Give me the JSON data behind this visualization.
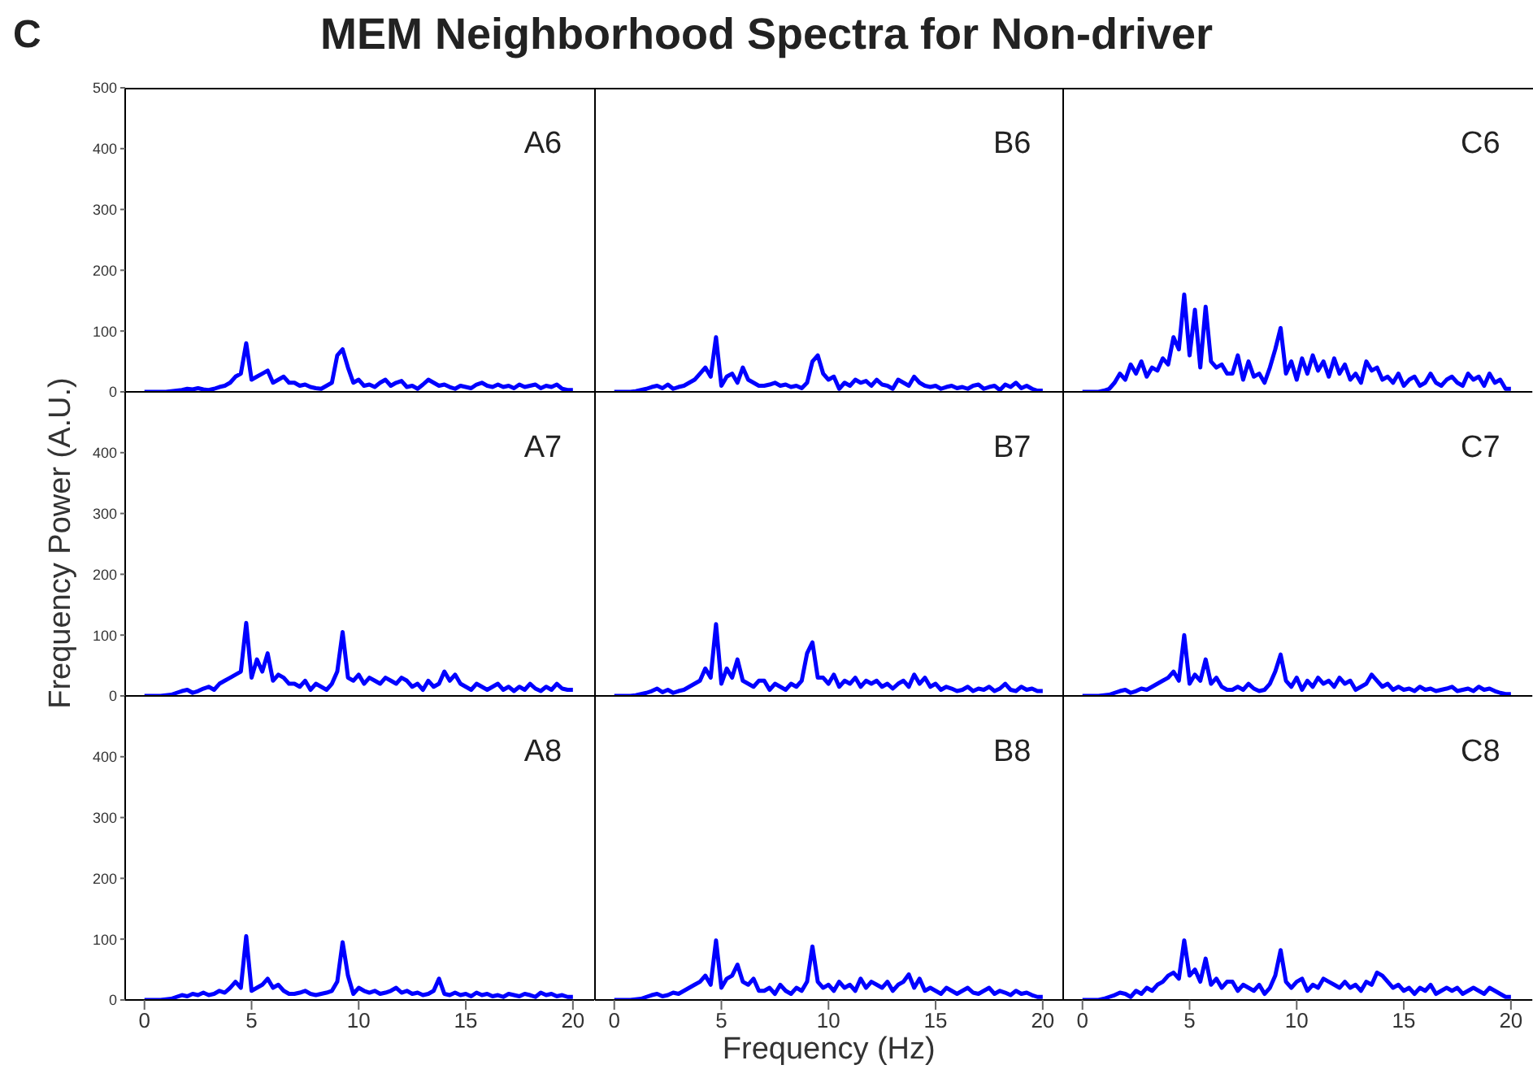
{
  "chart_data": [
    {
      "type": "line",
      "title": "A6",
      "annotations": [
        "C"
      ],
      "tick_labels": "y",
      "xlim": [
        -0.9,
        21
      ],
      "xticks": [
        0,
        5,
        10,
        15,
        20
      ],
      "ylim": [
        0,
        500
      ],
      "yticks": [
        0,
        100,
        200,
        300,
        400,
        500
      ],
      "grid": false,
      "legend": false,
      "marker": "none",
      "line_style": "solid",
      "x": [
        0,
        0.25,
        0.5,
        0.75,
        1,
        1.25,
        1.5,
        1.75,
        2,
        2.25,
        2.5,
        2.75,
        3,
        3.25,
        3.5,
        3.75,
        4,
        4.25,
        4.5,
        4.75,
        5,
        5.25,
        5.5,
        5.75,
        6,
        6.25,
        6.5,
        6.75,
        7,
        7.25,
        7.5,
        7.75,
        8,
        8.25,
        8.5,
        8.75,
        9,
        9.25,
        9.5,
        9.75,
        10,
        10.25,
        10.5,
        10.75,
        11,
        11.25,
        11.5,
        11.75,
        12,
        12.25,
        12.5,
        12.75,
        13,
        13.25,
        13.5,
        13.75,
        14,
        14.25,
        14.5,
        14.75,
        15,
        15.25,
        15.5,
        15.75,
        16,
        16.25,
        16.5,
        16.75,
        17,
        17.25,
        17.5,
        17.75,
        18,
        18.25,
        18.5,
        18.75,
        19,
        19.25,
        19.5,
        19.75,
        20
      ],
      "series": [
        {
          "color": "#0000ff",
          "values": [
            0,
            0,
            0,
            0,
            0,
            1,
            2,
            3,
            5,
            4,
            6,
            4,
            3,
            5,
            8,
            10,
            15,
            25,
            30,
            80,
            20,
            25,
            30,
            35,
            15,
            20,
            25,
            15,
            15,
            10,
            12,
            8,
            6,
            5,
            10,
            15,
            60,
            70,
            40,
            15,
            20,
            10,
            12,
            8,
            15,
            20,
            10,
            15,
            18,
            8,
            10,
            5,
            12,
            20,
            15,
            10,
            12,
            8,
            5,
            10,
            8,
            6,
            12,
            15,
            10,
            8,
            12,
            8,
            10,
            6,
            12,
            8,
            10,
            12,
            6,
            10,
            8,
            12,
            5,
            3,
            3
          ]
        }
      ]
    },
    {
      "type": "line",
      "title": "B6",
      "annotations": [
        "MEM Neighborhood Spectra for Non-driver"
      ],
      "tick_labels": false,
      "xlim": [
        -0.9,
        21
      ],
      "xticks": [
        0,
        5,
        10,
        15,
        20
      ],
      "ylim": [
        0,
        500
      ],
      "yticks": [
        0,
        100,
        200,
        300,
        400,
        500
      ],
      "grid": false,
      "legend": false,
      "marker": "none",
      "line_style": "solid",
      "x": [
        0,
        0.25,
        0.5,
        0.75,
        1,
        1.25,
        1.5,
        1.75,
        2,
        2.25,
        2.5,
        2.75,
        3,
        3.25,
        3.5,
        3.75,
        4,
        4.25,
        4.5,
        4.75,
        5,
        5.25,
        5.5,
        5.75,
        6,
        6.25,
        6.5,
        6.75,
        7,
        7.25,
        7.5,
        7.75,
        8,
        8.25,
        8.5,
        8.75,
        9,
        9.25,
        9.5,
        9.75,
        10,
        10.25,
        10.5,
        10.75,
        11,
        11.25,
        11.5,
        11.75,
        12,
        12.25,
        12.5,
        12.75,
        13,
        13.25,
        13.5,
        13.75,
        14,
        14.25,
        14.5,
        14.75,
        15,
        15.25,
        15.5,
        15.75,
        16,
        16.25,
        16.5,
        16.75,
        17,
        17.25,
        17.5,
        17.75,
        18,
        18.25,
        18.5,
        18.75,
        19,
        19.25,
        19.5,
        19.75,
        20
      ],
      "series": [
        {
          "color": "#0000ff",
          "values": [
            0,
            0,
            0,
            0,
            1,
            3,
            5,
            8,
            10,
            6,
            12,
            5,
            8,
            10,
            15,
            20,
            30,
            40,
            25,
            90,
            10,
            25,
            30,
            15,
            40,
            20,
            15,
            10,
            10,
            12,
            15,
            10,
            12,
            8,
            10,
            6,
            15,
            50,
            60,
            30,
            20,
            25,
            5,
            15,
            10,
            20,
            15,
            18,
            10,
            20,
            12,
            10,
            5,
            20,
            15,
            10,
            25,
            15,
            10,
            8,
            10,
            5,
            8,
            10,
            6,
            8,
            5,
            10,
            12,
            5,
            8,
            10,
            3,
            12,
            8,
            15,
            6,
            10,
            5,
            2,
            2
          ]
        }
      ]
    },
    {
      "type": "line",
      "title": "C6",
      "tick_labels": false,
      "xlim": [
        -0.9,
        21
      ],
      "xticks": [
        0,
        5,
        10,
        15,
        20
      ],
      "ylim": [
        0,
        500
      ],
      "yticks": [
        0,
        100,
        200,
        300,
        400,
        500
      ],
      "grid": false,
      "legend": false,
      "marker": "none",
      "line_style": "solid",
      "x": [
        0,
        0.25,
        0.5,
        0.75,
        1,
        1.25,
        1.5,
        1.75,
        2,
        2.25,
        2.5,
        2.75,
        3,
        3.25,
        3.5,
        3.75,
        4,
        4.25,
        4.5,
        4.75,
        5,
        5.25,
        5.5,
        5.75,
        6,
        6.25,
        6.5,
        6.75,
        7,
        7.25,
        7.5,
        7.75,
        8,
        8.25,
        8.5,
        8.75,
        9,
        9.25,
        9.5,
        9.75,
        10,
        10.25,
        10.5,
        10.75,
        11,
        11.25,
        11.5,
        11.75,
        12,
        12.25,
        12.5,
        12.75,
        13,
        13.25,
        13.5,
        13.75,
        14,
        14.25,
        14.5,
        14.75,
        15,
        15.25,
        15.5,
        15.75,
        16,
        16.25,
        16.5,
        16.75,
        17,
        17.25,
        17.5,
        17.75,
        18,
        18.25,
        18.5,
        18.75,
        19,
        19.25,
        19.5,
        19.75,
        20
      ],
      "series": [
        {
          "color": "#0000ff",
          "values": [
            0,
            0,
            0,
            0,
            2,
            5,
            15,
            30,
            20,
            45,
            30,
            50,
            25,
            40,
            35,
            55,
            45,
            90,
            70,
            160,
            60,
            135,
            40,
            140,
            50,
            40,
            45,
            30,
            30,
            60,
            20,
            50,
            25,
            30,
            15,
            40,
            70,
            105,
            30,
            50,
            20,
            55,
            30,
            60,
            35,
            50,
            25,
            55,
            30,
            45,
            20,
            30,
            15,
            50,
            35,
            40,
            20,
            25,
            15,
            30,
            10,
            20,
            25,
            10,
            15,
            30,
            15,
            10,
            20,
            25,
            15,
            10,
            30,
            20,
            25,
            10,
            30,
            15,
            20,
            5,
            5
          ]
        }
      ]
    },
    {
      "type": "line",
      "title": "A7",
      "ylabel": "Frequency Power (A.U.)",
      "tick_labels": "y",
      "xlim": [
        -0.9,
        21
      ],
      "xticks": [
        0,
        5,
        10,
        15,
        20
      ],
      "ylim": [
        0,
        500
      ],
      "yticks": [
        0,
        100,
        200,
        300,
        400
      ],
      "grid": false,
      "legend": false,
      "marker": "none",
      "line_style": "solid",
      "x": [
        0,
        0.25,
        0.5,
        0.75,
        1,
        1.25,
        1.5,
        1.75,
        2,
        2.25,
        2.5,
        2.75,
        3,
        3.25,
        3.5,
        3.75,
        4,
        4.25,
        4.5,
        4.75,
        5,
        5.25,
        5.5,
        5.75,
        6,
        6.25,
        6.5,
        6.75,
        7,
        7.25,
        7.5,
        7.75,
        8,
        8.25,
        8.5,
        8.75,
        9,
        9.25,
        9.5,
        9.75,
        10,
        10.25,
        10.5,
        10.75,
        11,
        11.25,
        11.5,
        11.75,
        12,
        12.25,
        12.5,
        12.75,
        13,
        13.25,
        13.5,
        13.75,
        14,
        14.25,
        14.5,
        14.75,
        15,
        15.25,
        15.5,
        15.75,
        16,
        16.25,
        16.5,
        16.75,
        17,
        17.25,
        17.5,
        17.75,
        18,
        18.25,
        18.5,
        18.75,
        19,
        19.25,
        19.5,
        19.75,
        20
      ],
      "series": [
        {
          "color": "#0000ff",
          "values": [
            0,
            0,
            0,
            0,
            1,
            2,
            5,
            8,
            10,
            5,
            8,
            12,
            15,
            10,
            20,
            25,
            30,
            35,
            40,
            120,
            30,
            60,
            40,
            70,
            25,
            35,
            30,
            20,
            20,
            15,
            25,
            10,
            20,
            15,
            10,
            20,
            40,
            105,
            30,
            25,
            35,
            20,
            30,
            25,
            20,
            30,
            25,
            20,
            30,
            25,
            15,
            20,
            10,
            25,
            15,
            20,
            40,
            25,
            35,
            20,
            15,
            10,
            20,
            15,
            10,
            15,
            20,
            10,
            15,
            8,
            15,
            10,
            20,
            12,
            8,
            15,
            10,
            20,
            12,
            10,
            10
          ]
        }
      ]
    },
    {
      "type": "line",
      "title": "B7",
      "tick_labels": false,
      "xlim": [
        -0.9,
        21
      ],
      "xticks": [
        0,
        5,
        10,
        15,
        20
      ],
      "ylim": [
        0,
        500
      ],
      "yticks": [
        0,
        100,
        200,
        300,
        400
      ],
      "grid": false,
      "legend": false,
      "marker": "none",
      "line_style": "solid",
      "x": [
        0,
        0.25,
        0.5,
        0.75,
        1,
        1.25,
        1.5,
        1.75,
        2,
        2.25,
        2.5,
        2.75,
        3,
        3.25,
        3.5,
        3.75,
        4,
        4.25,
        4.5,
        4.75,
        5,
        5.25,
        5.5,
        5.75,
        6,
        6.25,
        6.5,
        6.75,
        7,
        7.25,
        7.5,
        7.75,
        8,
        8.25,
        8.5,
        8.75,
        9,
        9.25,
        9.5,
        9.75,
        10,
        10.25,
        10.5,
        10.75,
        11,
        11.25,
        11.5,
        11.75,
        12,
        12.25,
        12.5,
        12.75,
        13,
        13.25,
        13.5,
        13.75,
        14,
        14.25,
        14.5,
        14.75,
        15,
        15.25,
        15.5,
        15.75,
        16,
        16.25,
        16.5,
        16.75,
        17,
        17.25,
        17.5,
        17.75,
        18,
        18.25,
        18.5,
        18.75,
        19,
        19.25,
        19.5,
        19.75,
        20
      ],
      "series": [
        {
          "color": "#0000ff",
          "values": [
            0,
            0,
            0,
            0,
            1,
            3,
            5,
            8,
            12,
            6,
            10,
            5,
            8,
            10,
            15,
            20,
            25,
            45,
            30,
            118,
            20,
            45,
            30,
            60,
            25,
            20,
            15,
            25,
            25,
            10,
            20,
            15,
            10,
            20,
            15,
            25,
            70,
            88,
            30,
            30,
            20,
            35,
            15,
            25,
            20,
            30,
            15,
            25,
            20,
            25,
            15,
            20,
            12,
            20,
            25,
            15,
            35,
            20,
            30,
            15,
            20,
            10,
            15,
            12,
            8,
            10,
            15,
            8,
            12,
            10,
            15,
            8,
            12,
            20,
            10,
            8,
            15,
            10,
            12,
            8,
            8
          ]
        }
      ]
    },
    {
      "type": "line",
      "title": "C7",
      "tick_labels": false,
      "xlim": [
        -0.9,
        21
      ],
      "xticks": [
        0,
        5,
        10,
        15,
        20
      ],
      "ylim": [
        0,
        500
      ],
      "yticks": [
        0,
        100,
        200,
        300,
        400
      ],
      "grid": false,
      "legend": false,
      "marker": "none",
      "line_style": "solid",
      "x": [
        0,
        0.25,
        0.5,
        0.75,
        1,
        1.25,
        1.5,
        1.75,
        2,
        2.25,
        2.5,
        2.75,
        3,
        3.25,
        3.5,
        3.75,
        4,
        4.25,
        4.5,
        4.75,
        5,
        5.25,
        5.5,
        5.75,
        6,
        6.25,
        6.5,
        6.75,
        7,
        7.25,
        7.5,
        7.75,
        8,
        8.25,
        8.5,
        8.75,
        9,
        9.25,
        9.5,
        9.75,
        10,
        10.25,
        10.5,
        10.75,
        11,
        11.25,
        11.5,
        11.75,
        12,
        12.25,
        12.5,
        12.75,
        13,
        13.25,
        13.5,
        13.75,
        14,
        14.25,
        14.5,
        14.75,
        15,
        15.25,
        15.5,
        15.75,
        16,
        16.25,
        16.5,
        16.75,
        17,
        17.25,
        17.5,
        17.75,
        18,
        18.25,
        18.5,
        18.75,
        19,
        19.25,
        19.5,
        19.75,
        20
      ],
      "series": [
        {
          "color": "#0000ff",
          "values": [
            0,
            0,
            0,
            0,
            1,
            2,
            5,
            8,
            10,
            5,
            8,
            12,
            10,
            15,
            20,
            25,
            30,
            40,
            25,
            100,
            20,
            35,
            25,
            60,
            20,
            30,
            15,
            10,
            10,
            15,
            10,
            20,
            12,
            8,
            10,
            20,
            40,
            68,
            25,
            15,
            30,
            10,
            25,
            15,
            30,
            20,
            25,
            15,
            30,
            20,
            25,
            10,
            15,
            20,
            35,
            25,
            15,
            20,
            10,
            15,
            10,
            12,
            8,
            15,
            10,
            12,
            8,
            10,
            12,
            15,
            8,
            10,
            12,
            8,
            15,
            10,
            12,
            8,
            5,
            3,
            3
          ]
        }
      ]
    },
    {
      "type": "line",
      "title": "A8",
      "xlim": [
        -0.9,
        21
      ],
      "xticks": [
        0,
        5,
        10,
        15,
        20
      ],
      "ylim": [
        0,
        500
      ],
      "yticks": [
        0,
        100,
        200,
        300,
        400
      ],
      "grid": false,
      "legend": false,
      "marker": "none",
      "line_style": "solid",
      "x": [
        0,
        0.25,
        0.5,
        0.75,
        1,
        1.25,
        1.5,
        1.75,
        2,
        2.25,
        2.5,
        2.75,
        3,
        3.25,
        3.5,
        3.75,
        4,
        4.25,
        4.5,
        4.75,
        5,
        5.25,
        5.5,
        5.75,
        6,
        6.25,
        6.5,
        6.75,
        7,
        7.25,
        7.5,
        7.75,
        8,
        8.25,
        8.5,
        8.75,
        9,
        9.25,
        9.5,
        9.75,
        10,
        10.25,
        10.5,
        10.75,
        11,
        11.25,
        11.5,
        11.75,
        12,
        12.25,
        12.5,
        12.75,
        13,
        13.25,
        13.5,
        13.75,
        14,
        14.25,
        14.5,
        14.75,
        15,
        15.25,
        15.5,
        15.75,
        16,
        16.25,
        16.5,
        16.75,
        17,
        17.25,
        17.5,
        17.75,
        18,
        18.25,
        18.5,
        18.75,
        19,
        19.25,
        19.5,
        19.75,
        20
      ],
      "series": [
        {
          "color": "#0000ff",
          "values": [
            0,
            0,
            0,
            0,
            1,
            2,
            5,
            8,
            6,
            10,
            8,
            12,
            8,
            10,
            15,
            12,
            20,
            30,
            20,
            105,
            15,
            20,
            25,
            35,
            20,
            25,
            15,
            10,
            10,
            12,
            15,
            10,
            8,
            10,
            12,
            15,
            30,
            95,
            40,
            10,
            20,
            15,
            12,
            15,
            10,
            12,
            15,
            20,
            12,
            15,
            10,
            12,
            8,
            10,
            15,
            35,
            10,
            8,
            12,
            8,
            10,
            6,
            12,
            8,
            10,
            6,
            8,
            5,
            10,
            8,
            6,
            10,
            8,
            5,
            12,
            8,
            10,
            6,
            8,
            5,
            5
          ]
        }
      ]
    },
    {
      "type": "line",
      "title": "B8",
      "xlabel": "Frequency (Hz)",
      "tick_labels": "x",
      "xlim": [
        -0.9,
        21
      ],
      "xticks": [
        0,
        5,
        10,
        15,
        20
      ],
      "ylim": [
        0,
        500
      ],
      "yticks": [
        0,
        100,
        200,
        300,
        400
      ],
      "grid": false,
      "legend": false,
      "marker": "none",
      "line_style": "solid",
      "x": [
        0,
        0.25,
        0.5,
        0.75,
        1,
        1.25,
        1.5,
        1.75,
        2,
        2.25,
        2.5,
        2.75,
        3,
        3.25,
        3.5,
        3.75,
        4,
        4.25,
        4.5,
        4.75,
        5,
        5.25,
        5.5,
        5.75,
        6,
        6.25,
        6.5,
        6.75,
        7,
        7.25,
        7.5,
        7.75,
        8,
        8.25,
        8.5,
        8.75,
        9,
        9.25,
        9.5,
        9.75,
        10,
        10.25,
        10.5,
        10.75,
        11,
        11.25,
        11.5,
        11.75,
        12,
        12.25,
        12.5,
        12.75,
        13,
        13.25,
        13.5,
        13.75,
        14,
        14.25,
        14.5,
        14.75,
        15,
        15.25,
        15.5,
        15.75,
        16,
        16.25,
        16.5,
        16.75,
        17,
        17.25,
        17.5,
        17.75,
        18,
        18.25,
        18.5,
        18.75,
        19,
        19.25,
        19.5,
        19.75,
        20
      ],
      "series": [
        {
          "color": "#0000ff",
          "values": [
            0,
            0,
            0,
            0,
            1,
            2,
            5,
            8,
            10,
            6,
            8,
            12,
            10,
            15,
            20,
            25,
            30,
            40,
            25,
            98,
            20,
            35,
            40,
            58,
            30,
            25,
            35,
            15,
            15,
            20,
            10,
            25,
            15,
            10,
            20,
            15,
            30,
            88,
            30,
            20,
            25,
            15,
            30,
            20,
            25,
            15,
            35,
            20,
            30,
            25,
            20,
            30,
            15,
            25,
            30,
            42,
            20,
            35,
            15,
            20,
            15,
            10,
            20,
            15,
            10,
            15,
            20,
            12,
            10,
            15,
            20,
            10,
            15,
            12,
            8,
            15,
            10,
            12,
            8,
            5,
            5
          ]
        }
      ]
    },
    {
      "type": "line",
      "title": "C8",
      "tick_labels": "x",
      "xlim": [
        -0.9,
        21
      ],
      "xticks": [
        0,
        5,
        10,
        15,
        20
      ],
      "ylim": [
        0,
        500
      ],
      "yticks": [
        0,
        100,
        200,
        300,
        400
      ],
      "grid": false,
      "legend": false,
      "marker": "none",
      "line_style": "solid",
      "x": [
        0,
        0.25,
        0.5,
        0.75,
        1,
        1.25,
        1.5,
        1.75,
        2,
        2.25,
        2.5,
        2.75,
        3,
        3.25,
        3.5,
        3.75,
        4,
        4.25,
        4.5,
        4.75,
        5,
        5.25,
        5.5,
        5.75,
        6,
        6.25,
        6.5,
        6.75,
        7,
        7.25,
        7.5,
        7.75,
        8,
        8.25,
        8.5,
        8.75,
        9,
        9.25,
        9.5,
        9.75,
        10,
        10.25,
        10.5,
        10.75,
        11,
        11.25,
        11.5,
        11.75,
        12,
        12.25,
        12.5,
        12.75,
        13,
        13.25,
        13.5,
        13.75,
        14,
        14.25,
        14.5,
        14.75,
        15,
        15.25,
        15.5,
        15.75,
        16,
        16.25,
        16.5,
        16.75,
        17,
        17.25,
        17.5,
        17.75,
        18,
        18.25,
        18.5,
        18.75,
        19,
        19.25,
        19.5,
        19.75,
        20
      ],
      "series": [
        {
          "color": "#0000ff",
          "values": [
            0,
            0,
            0,
            0,
            2,
            5,
            8,
            12,
            10,
            5,
            15,
            10,
            20,
            15,
            25,
            30,
            40,
            45,
            35,
            98,
            40,
            50,
            30,
            68,
            25,
            35,
            20,
            30,
            30,
            15,
            25,
            20,
            15,
            25,
            10,
            20,
            40,
            82,
            30,
            20,
            30,
            35,
            15,
            25,
            20,
            35,
            30,
            25,
            20,
            30,
            20,
            25,
            15,
            30,
            25,
            45,
            40,
            30,
            20,
            25,
            15,
            20,
            10,
            20,
            15,
            25,
            10,
            15,
            20,
            15,
            20,
            10,
            15,
            20,
            15,
            10,
            20,
            15,
            10,
            5,
            5
          ]
        }
      ]
    }
  ]
}
